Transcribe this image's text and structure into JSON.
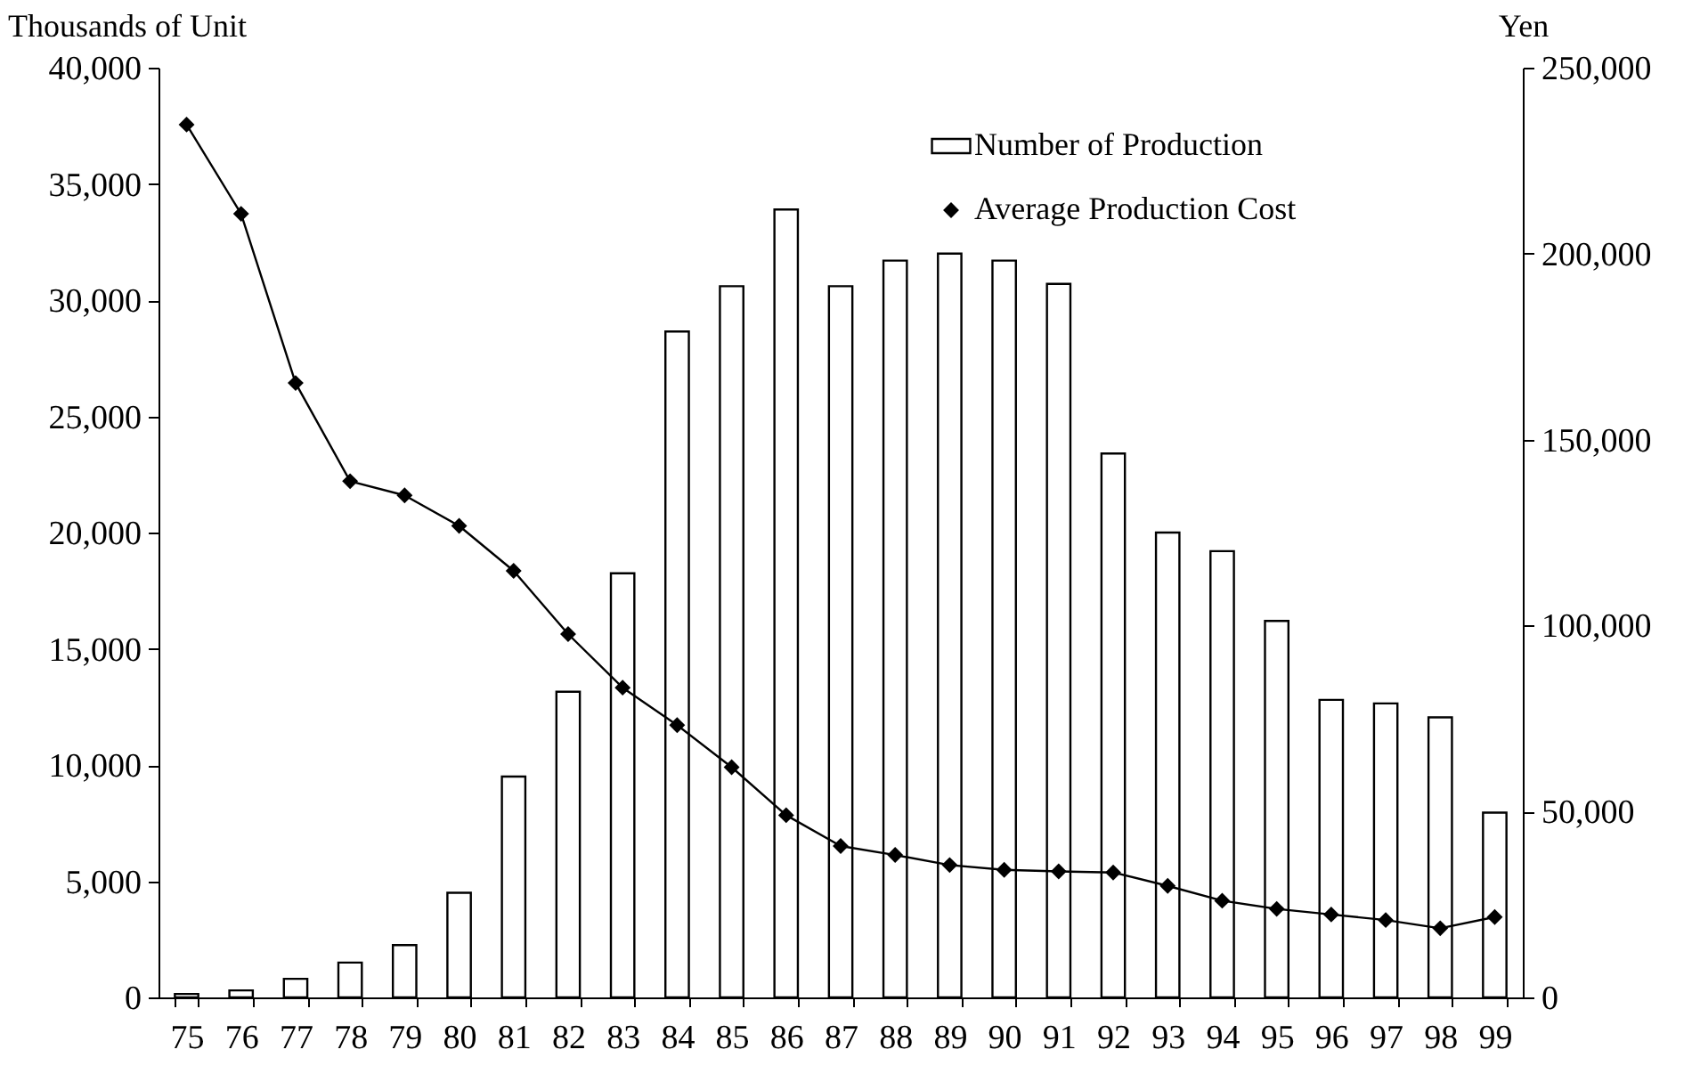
{
  "chart_data": {
    "type": "bar",
    "categories": [
      "75",
      "76",
      "77",
      "78",
      "79",
      "80",
      "81",
      "82",
      "83",
      "84",
      "85",
      "86",
      "87",
      "88",
      "89",
      "90",
      "91",
      "92",
      "93",
      "94",
      "95",
      "96",
      "97",
      "98",
      "99"
    ],
    "series": [
      {
        "name": "Number of Production",
        "color": "#ffffff",
        "values": [
          150,
          300,
          800,
          1500,
          2250,
          4500,
          9500,
          13150,
          18250,
          28650,
          30600,
          33900,
          30600,
          31700,
          32000,
          31700,
          30700,
          23400,
          20000,
          19200,
          16200,
          12800,
          12650,
          12050,
          7950
        ]
      },
      {
        "name": "Average Production Cost",
        "type": "line",
        "axis": "y2",
        "color": "#000000",
        "values": [
          234700,
          210700,
          165200,
          138800,
          135000,
          126800,
          114700,
          97700,
          83300,
          73200,
          61900,
          49000,
          40700,
          38300,
          35600,
          34300,
          33900,
          33600,
          30000,
          26000,
          23800,
          22300,
          20800,
          18600,
          21600
        ]
      }
    ],
    "ylabel": "Thousands of Unit",
    "y2label": "Yen",
    "ylim": [
      0,
      40000
    ],
    "yticks": [
      0,
      {
        "value": 5000,
        "label": "5,000"
      },
      {
        "value": 10000,
        "label": "10,000"
      },
      {
        "value": 15000,
        "label": "15,000"
      },
      {
        "value": 20000,
        "label": "20,000"
      },
      {
        "value": 25000,
        "label": "25,000"
      },
      {
        "value": 30000,
        "label": "30,000"
      },
      {
        "value": 35000,
        "label": "35,000"
      },
      {
        "value": 40000,
        "label": "40,000"
      }
    ],
    "y2lim": [
      0,
      250000
    ],
    "y2ticks": [
      0,
      {
        "value": 50000,
        "label": "50,000"
      },
      {
        "value": 100000,
        "label": "100,000"
      },
      {
        "value": 150000,
        "label": "150,000"
      },
      {
        "value": 200000,
        "label": "200,000"
      },
      {
        "value": 250000,
        "label": "250,000"
      }
    ],
    "legend": "top right",
    "marker": "diamond",
    "grid": false
  }
}
